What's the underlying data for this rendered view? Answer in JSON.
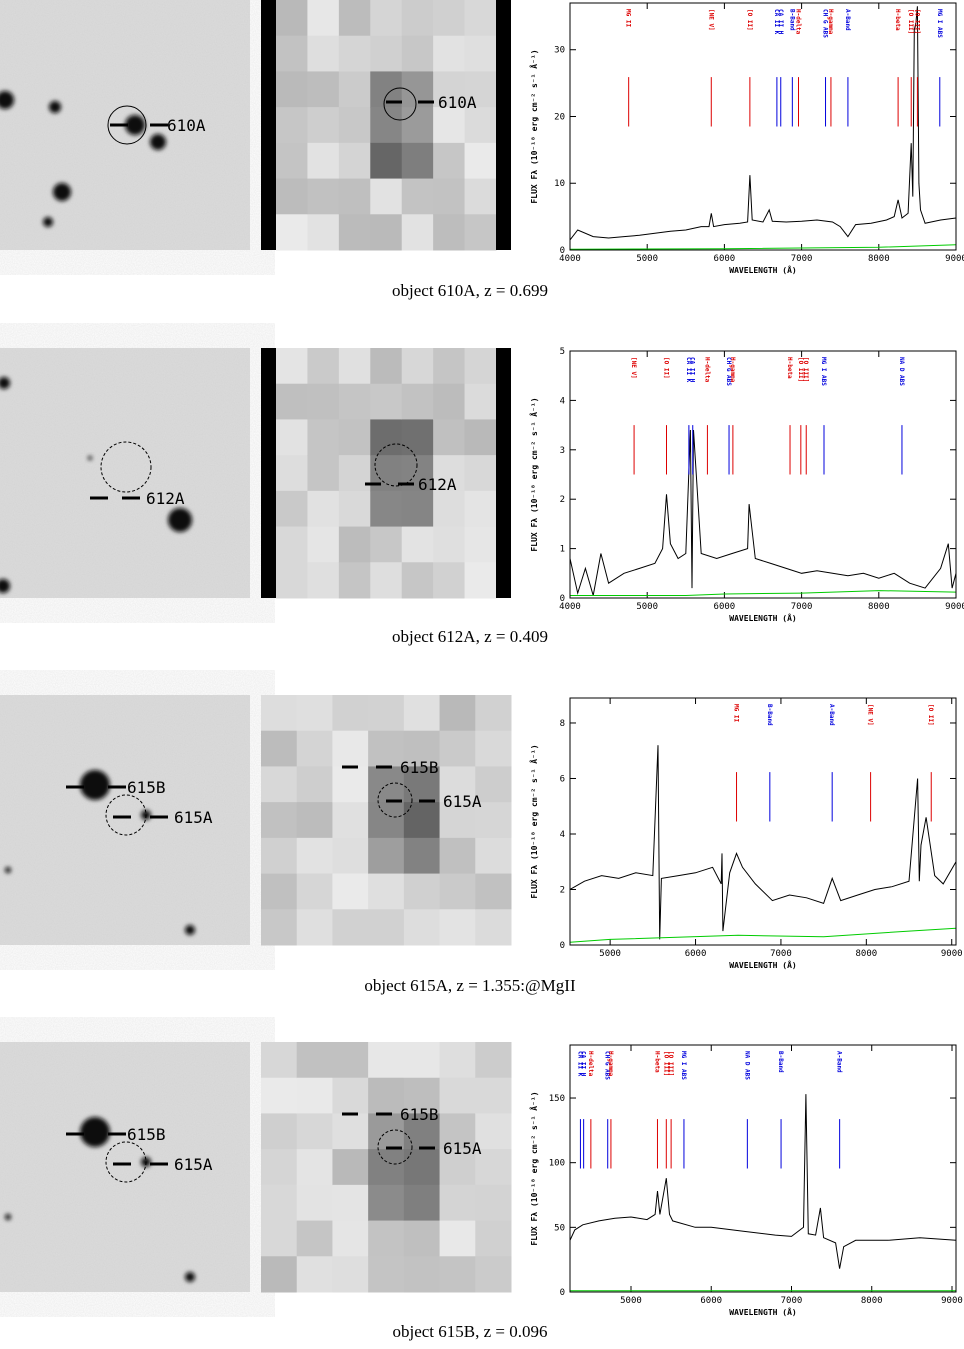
{
  "figures": [
    {
      "caption": "object 610A, z = 0.699",
      "image_labels": [
        "610A"
      ],
      "cutout_labels": [
        "610A"
      ]
    },
    {
      "caption": "object 612A, z = 0.409",
      "image_labels": [
        "612A"
      ],
      "cutout_labels": [
        "612A"
      ]
    },
    {
      "caption": "object 615A, z = 1.355:@MgII",
      "image_labels": [
        "615B",
        "615A"
      ],
      "cutout_labels": [
        "615B",
        "615A"
      ]
    },
    {
      "caption": "object 615B, z = 0.096",
      "image_labels": [
        "615B",
        "615A"
      ],
      "cutout_labels": [
        "615B",
        "615A"
      ]
    }
  ],
  "chart_data": [
    {
      "type": "line",
      "x_label": "WAVELENGTH (Å)",
      "y_label": "FLUX Fλ (10⁻¹⁸ erg cm⁻² s⁻¹ Å⁻¹)",
      "xlim": [
        4000,
        9000
      ],
      "xticks": [
        4000,
        5000,
        6000,
        7000,
        8000,
        9000
      ],
      "ylim": [
        0,
        37
      ],
      "yticks": [
        0,
        10,
        20,
        30
      ],
      "series": [
        {
          "color": "#000000",
          "x": [
            4000,
            4100,
            4300,
            4500,
            4700,
            4900,
            5100,
            5300,
            5500,
            5700,
            5800,
            5830,
            5860,
            6000,
            6200,
            6300,
            6330,
            6360,
            6500,
            6580,
            6620,
            6800,
            7000,
            7200,
            7400,
            7500,
            7600,
            7700,
            7900,
            8100,
            8200,
            8250,
            8300,
            8380,
            8420,
            8440,
            8460,
            8480,
            8500,
            8520,
            8540,
            8600,
            8800,
            9000
          ],
          "values": [
            1.5,
            3,
            2,
            1.8,
            2,
            2.2,
            2.5,
            2.8,
            3,
            3.5,
            3.5,
            5.5,
            3.5,
            3.8,
            4,
            4.2,
            11.2,
            4.5,
            4.2,
            6,
            4.3,
            4.2,
            4.3,
            4.5,
            4.2,
            3.5,
            2,
            3.8,
            4,
            4.5,
            5,
            7.5,
            4.8,
            5.5,
            16,
            8,
            33,
            34,
            36.5,
            10,
            6,
            4,
            4.5,
            4.8
          ]
        },
        {
          "color": "#00cc00",
          "x": [
            4000,
            6000,
            8000,
            9000
          ],
          "values": [
            0.1,
            0.2,
            0.4,
            0.8
          ]
        }
      ],
      "line_markers": [
        {
          "label": "MG II",
          "x": 4760,
          "color": "#dd0000"
        },
        {
          "label": "[NE V]",
          "x": 5830,
          "color": "#dd0000"
        },
        {
          "label": "[O II]",
          "x": 6330,
          "color": "#dd0000"
        },
        {
          "label": "CA II K",
          "x": 6680,
          "color": "#0000dd"
        },
        {
          "label": "CA II H",
          "x": 6730,
          "color": "#0000dd"
        },
        {
          "label": "B-Band",
          "x": 6880,
          "color": "#0000dd"
        },
        {
          "label": "H-delta",
          "x": 6960,
          "color": "#dd0000"
        },
        {
          "label": "CH G ABS",
          "x": 7310,
          "color": "#0000dd"
        },
        {
          "label": "H-gamma",
          "x": 7380,
          "color": "#dd0000"
        },
        {
          "label": "A-Band",
          "x": 7600,
          "color": "#0000dd"
        },
        {
          "label": "H-beta",
          "x": 8250,
          "color": "#dd0000"
        },
        {
          "label": "[O III]",
          "x": 8420,
          "color": "#dd0000"
        },
        {
          "label": "[O III]",
          "x": 8500,
          "color": "#dd0000"
        },
        {
          "label": "MG I ABS",
          "x": 8790,
          "color": "#0000dd"
        }
      ]
    },
    {
      "type": "line",
      "x_label": "WAVELENGTH (Å)",
      "y_label": "FLUX Fλ (10⁻¹⁸ erg cm⁻² s⁻¹ Å⁻¹)",
      "xlim": [
        4000,
        9000
      ],
      "xticks": [
        4000,
        5000,
        6000,
        7000,
        8000,
        9000
      ],
      "ylim": [
        0,
        5
      ],
      "yticks": [
        0,
        1,
        2,
        3,
        4,
        5
      ],
      "series": [
        {
          "color": "#000000",
          "x": [
            4000,
            4100,
            4200,
            4300,
            4400,
            4500,
            4700,
            4900,
            5100,
            5200,
            5250,
            5300,
            5400,
            5500,
            5560,
            5580,
            5600,
            5700,
            5900,
            6100,
            6300,
            6320,
            6400,
            6600,
            6800,
            7000,
            7200,
            7400,
            7600,
            7800,
            8000,
            8200,
            8400,
            8600,
            8800,
            8900,
            8950,
            9000
          ],
          "values": [
            0.8,
            0.1,
            0.6,
            0.05,
            0.9,
            0.3,
            0.5,
            0.6,
            0.7,
            1.0,
            2.1,
            1.1,
            0.8,
            0.9,
            3.4,
            0.2,
            3.4,
            0.9,
            0.8,
            0.9,
            1.0,
            1.9,
            0.8,
            0.7,
            0.6,
            0.5,
            0.55,
            0.5,
            0.45,
            0.5,
            0.4,
            0.5,
            0.3,
            0.2,
            0.6,
            1.1,
            0.2,
            0.5
          ]
        },
        {
          "color": "#00cc00",
          "x": [
            4000,
            5500,
            6000,
            7000,
            8000,
            9000
          ],
          "values": [
            0.05,
            0.05,
            0.08,
            0.1,
            0.15,
            0.12
          ]
        }
      ],
      "line_markers": [
        {
          "label": "[NE V]",
          "x": 4830,
          "color": "#dd0000"
        },
        {
          "label": "[O II]",
          "x": 5250,
          "color": "#dd0000"
        },
        {
          "label": "CA II K",
          "x": 5540,
          "color": "#0000dd"
        },
        {
          "label": "CA II H",
          "x": 5590,
          "color": "#0000dd"
        },
        {
          "label": "H-delta",
          "x": 5780,
          "color": "#dd0000"
        },
        {
          "label": "CH G ABS",
          "x": 6060,
          "color": "#0000dd"
        },
        {
          "label": "H-gamma",
          "x": 6110,
          "color": "#dd0000"
        },
        {
          "label": "H-beta",
          "x": 6850,
          "color": "#dd0000"
        },
        {
          "label": "[O III]",
          "x": 6990,
          "color": "#dd0000"
        },
        {
          "label": "[O III]",
          "x": 7060,
          "color": "#dd0000"
        },
        {
          "label": "MG I ABS",
          "x": 7290,
          "color": "#0000dd"
        },
        {
          "label": "NA D ABS",
          "x": 8300,
          "color": "#0000dd"
        }
      ]
    },
    {
      "type": "line",
      "x_label": "WAVELENGTH (Å)",
      "y_label": "FLUX Fλ (10⁻¹⁸ erg cm⁻² s⁻¹ Å⁻¹)",
      "xlim": [
        4530,
        9050
      ],
      "xticks": [
        5000,
        6000,
        7000,
        8000,
        9000
      ],
      "ylim": [
        0,
        8.9
      ],
      "yticks": [
        0,
        2,
        4,
        6,
        8
      ],
      "series": [
        {
          "color": "#000000",
          "x": [
            4530,
            4700,
            4900,
            5100,
            5300,
            5500,
            5560,
            5580,
            5600,
            5800,
            6000,
            6200,
            6300,
            6310,
            6320,
            6400,
            6480,
            6550,
            6700,
            6900,
            7100,
            7300,
            7500,
            7600,
            7700,
            7900,
            8100,
            8300,
            8500,
            8600,
            8620,
            8640,
            8700,
            8800,
            8900,
            9050
          ],
          "values": [
            2,
            2.3,
            2.5,
            2.4,
            2.6,
            2.5,
            7.2,
            0.2,
            2.4,
            2.5,
            2.6,
            2.8,
            2.2,
            3.3,
            0.5,
            2.6,
            3.3,
            2.8,
            2.2,
            1.6,
            1.8,
            1.7,
            1.5,
            2.4,
            1.6,
            1.8,
            2.0,
            2.1,
            2.3,
            6.0,
            2.3,
            3.6,
            4.6,
            2.5,
            2.2,
            3.0
          ]
        },
        {
          "color": "#00cc00",
          "x": [
            4530,
            5000,
            6500,
            7500,
            8500,
            9050
          ],
          "values": [
            0.1,
            0.2,
            0.35,
            0.3,
            0.5,
            0.6
          ]
        }
      ],
      "line_markers": [
        {
          "label": "MG II",
          "x": 6480,
          "color": "#dd0000"
        },
        {
          "label": "B-Band",
          "x": 6870,
          "color": "#0000dd"
        },
        {
          "label": "A-Band",
          "x": 7600,
          "color": "#0000dd"
        },
        {
          "label": "[NE V]",
          "x": 8050,
          "color": "#dd0000"
        },
        {
          "label": "[O II]",
          "x": 8760,
          "color": "#dd0000"
        }
      ]
    },
    {
      "type": "line",
      "x_label": "WAVELENGTH (Å)",
      "y_label": "FLUX Fλ (10⁻¹⁸ erg cm⁻² s⁻¹ Å⁻¹)",
      "xlim": [
        4240,
        9050
      ],
      "xticks": [
        5000,
        6000,
        7000,
        8000,
        9000
      ],
      "ylim": [
        0,
        191
      ],
      "yticks": [
        0,
        50,
        100,
        150
      ],
      "series": [
        {
          "color": "#000000",
          "x": [
            4240,
            4300,
            4400,
            4600,
            4800,
            5000,
            5200,
            5300,
            5330,
            5360,
            5440,
            5480,
            5520,
            5800,
            6000,
            6400,
            6800,
            7000,
            7150,
            7180,
            7210,
            7300,
            7360,
            7400,
            7550,
            7600,
            7650,
            7800,
            8200,
            8600,
            9050
          ],
          "values": [
            40,
            48,
            52,
            55,
            57,
            58,
            56,
            60,
            78,
            60,
            88,
            60,
            55,
            50,
            50,
            47,
            44,
            43,
            50,
            153,
            45,
            44,
            65,
            42,
            38,
            18,
            35,
            40,
            40,
            42,
            40
          ]
        },
        {
          "color": "#00cc00",
          "x": [
            4240,
            9050
          ],
          "values": [
            1,
            1
          ]
        }
      ],
      "line_markers": [
        {
          "label": "CA II K",
          "x": 4370,
          "color": "#0000dd"
        },
        {
          "label": "CA II H",
          "x": 4410,
          "color": "#0000dd"
        },
        {
          "label": "H-delta",
          "x": 4500,
          "color": "#dd0000"
        },
        {
          "label": "CH G ABS",
          "x": 4710,
          "color": "#0000dd"
        },
        {
          "label": "H-gamma",
          "x": 4750,
          "color": "#dd0000"
        },
        {
          "label": "H-beta",
          "x": 5330,
          "color": "#dd0000"
        },
        {
          "label": "[O III]",
          "x": 5440,
          "color": "#dd0000"
        },
        {
          "label": "[O III]",
          "x": 5500,
          "color": "#dd0000"
        },
        {
          "label": "MG I ABS",
          "x": 5660,
          "color": "#0000dd"
        },
        {
          "label": "NA D ABS",
          "x": 6450,
          "color": "#0000dd"
        },
        {
          "label": "B-Band",
          "x": 6870,
          "color": "#0000dd"
        },
        {
          "label": "A-Band",
          "x": 7600,
          "color": "#0000dd"
        }
      ]
    }
  ]
}
